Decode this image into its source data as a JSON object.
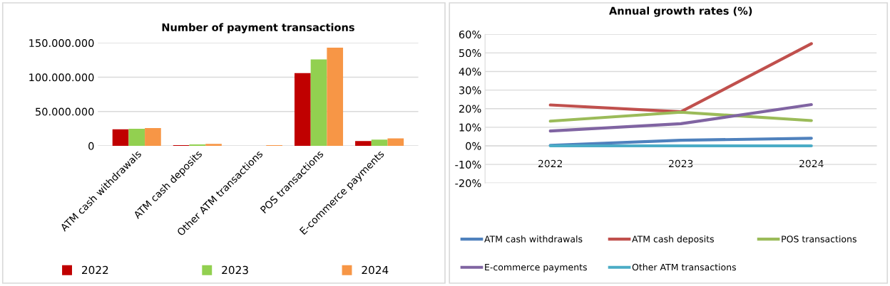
{
  "chart_data": [
    {
      "type": "bar",
      "title": "Number of payment transactions",
      "categories": [
        "ATM cash withdrawals",
        "ATM cash deposits",
        "Other ATM transactions",
        "POS transactions",
        "E-commerce payments"
      ],
      "series": [
        {
          "name": "2022",
          "color": "#c00000",
          "values": [
            24000000,
            1000000,
            null,
            106000000,
            7000000
          ]
        },
        {
          "name": "2023",
          "color": "#92d050",
          "values": [
            25000000,
            2000000,
            null,
            126000000,
            9000000
          ]
        },
        {
          "name": "2024",
          "color": "#f79646",
          "values": [
            26000000,
            3000000,
            1000000,
            143000000,
            11000000
          ]
        }
      ],
      "ylim": [
        0,
        150000000
      ],
      "yticks": [
        {
          "value": 0,
          "label": "0"
        },
        {
          "value": 50000000,
          "label": "50.000.000"
        },
        {
          "value": 100000000,
          "label": "100.000.000"
        },
        {
          "value": 150000000,
          "label": "150.000.000"
        }
      ],
      "grid": "y",
      "legend": "bottom"
    },
    {
      "type": "line",
      "title": "Annual growth rates (%)",
      "categories": [
        "2022",
        "2023",
        "2024"
      ],
      "series": [
        {
          "name": "ATM cash withdrawals",
          "color": "#4f81bd",
          "values": [
            0.3,
            3,
            4.1
          ]
        },
        {
          "name": "ATM cash deposits",
          "color": "#c0504d",
          "values": [
            22,
            18.3,
            55
          ]
        },
        {
          "name": "POS transactions",
          "color": "#9bbb59",
          "values": [
            13.3,
            18.1,
            13.6
          ]
        },
        {
          "name": "E-commerce payments",
          "color": "#8064a2",
          "values": [
            8,
            11.9,
            22.2
          ]
        },
        {
          "name": "Other ATM transactions",
          "color": "#4bacc6",
          "values": [
            0,
            0,
            0
          ]
        }
      ],
      "ylim": [
        -20,
        60
      ],
      "yticks": [
        {
          "value": -20,
          "label": "-20%"
        },
        {
          "value": -10,
          "label": "-10%"
        },
        {
          "value": 0,
          "label": "0%"
        },
        {
          "value": 10,
          "label": "10%"
        },
        {
          "value": 20,
          "label": "20%"
        },
        {
          "value": 30,
          "label": "30%"
        },
        {
          "value": 40,
          "label": "40%"
        },
        {
          "value": 50,
          "label": "50%"
        },
        {
          "value": 60,
          "label": "60%"
        }
      ],
      "grid": "y",
      "legend": "bottom",
      "marker": "none",
      "line_style": "solid"
    }
  ]
}
